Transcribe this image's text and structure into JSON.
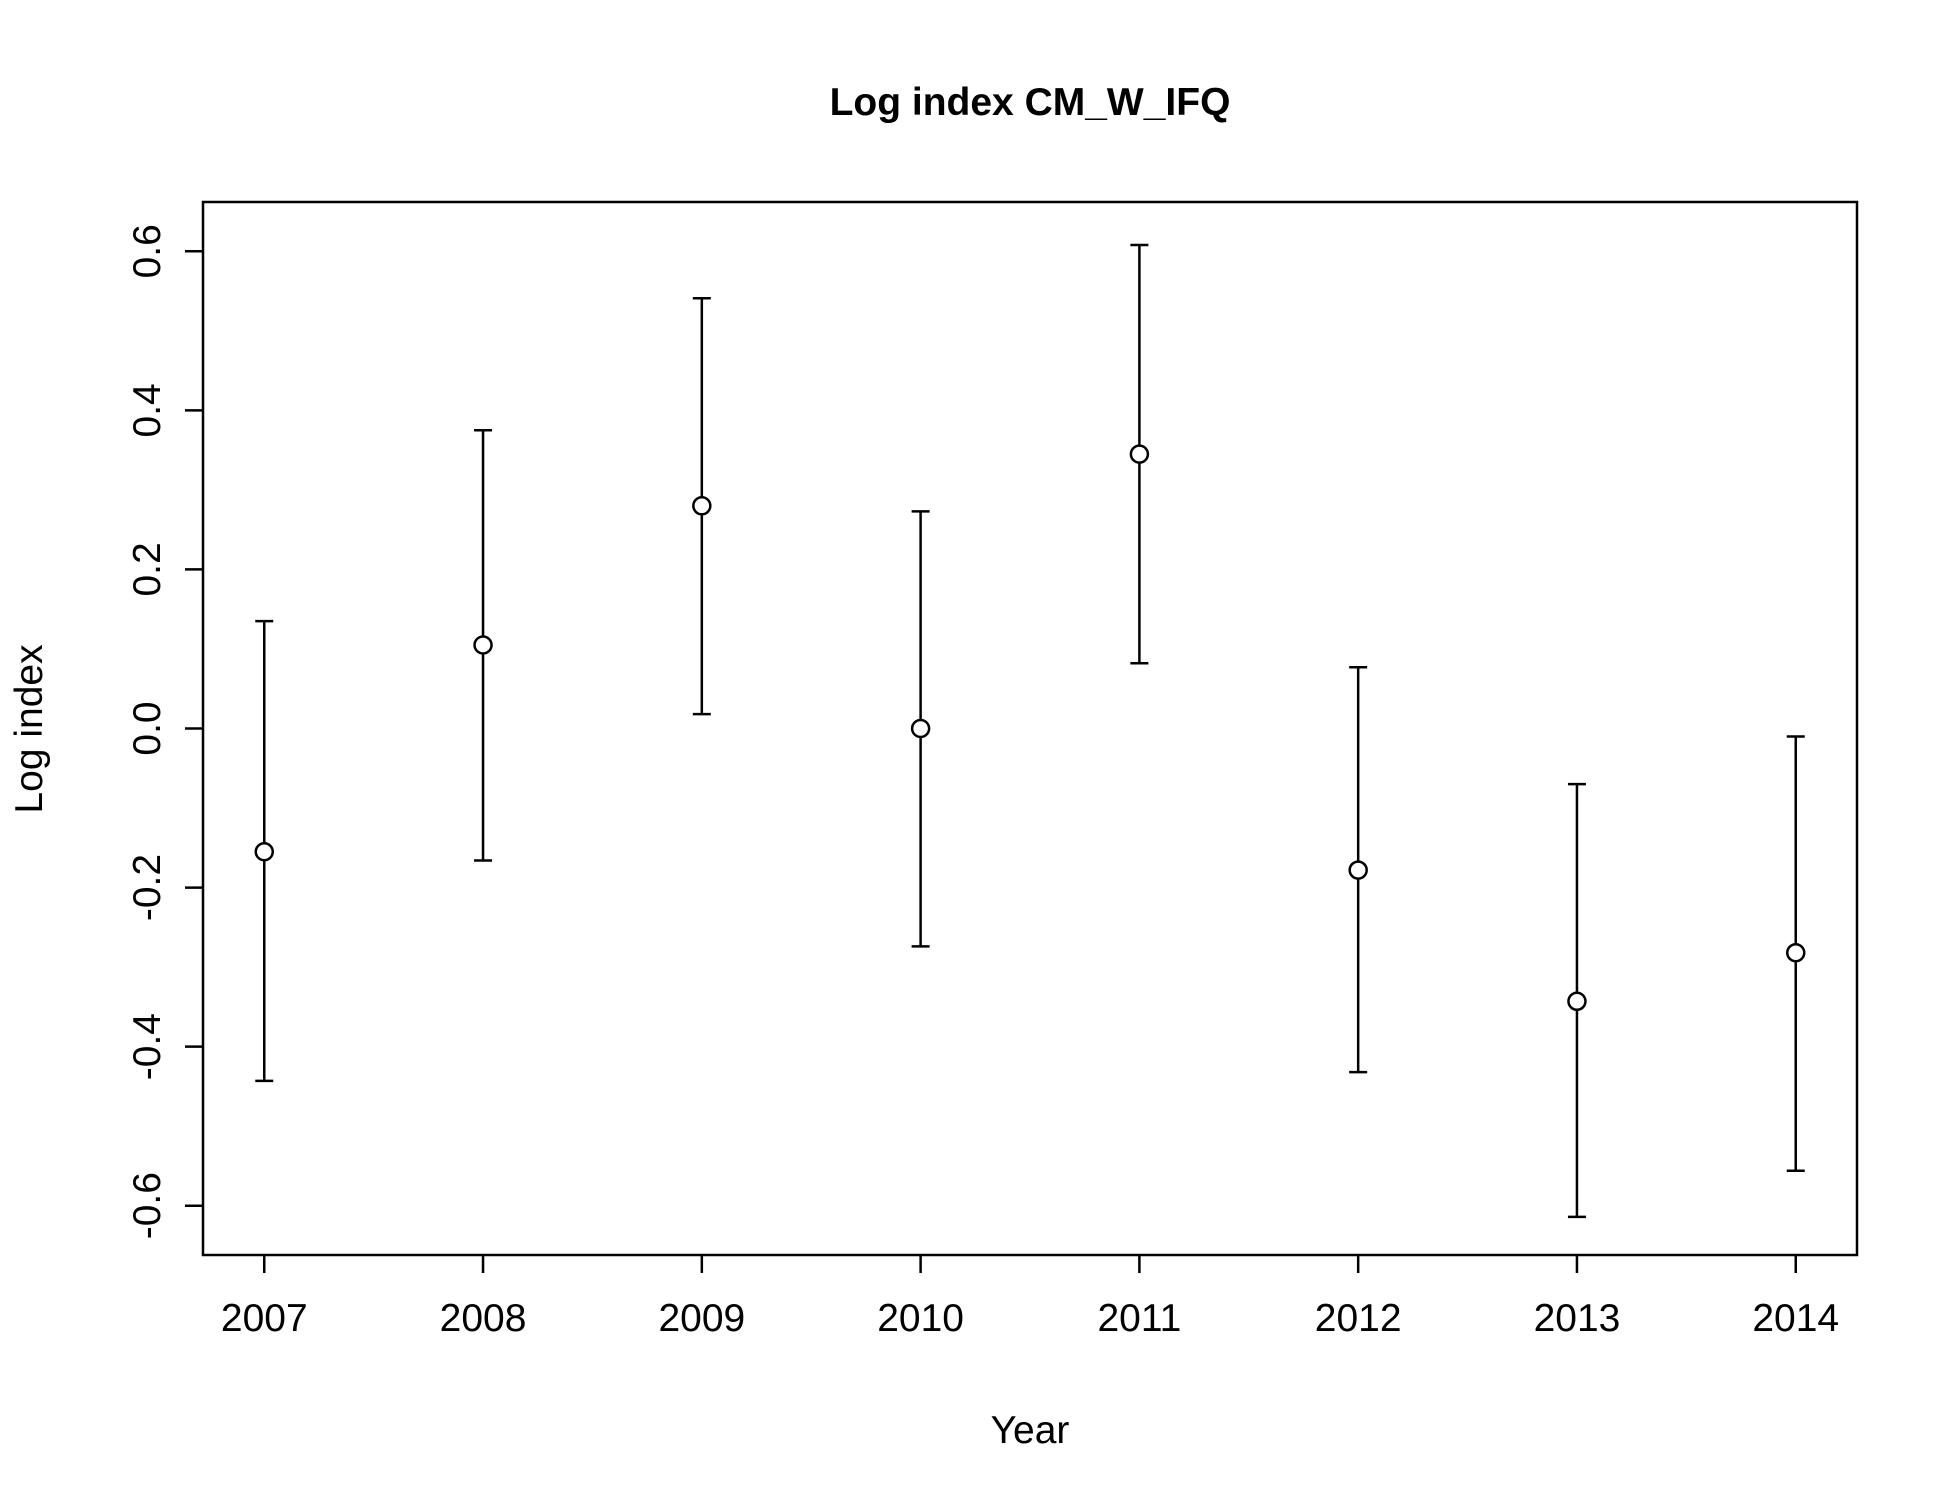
{
  "chart_data": {
    "type": "scatter",
    "title": "Log index CM_W_IFQ",
    "xlabel": "Year",
    "ylabel": "Log index",
    "x": [
      2007,
      2008,
      2009,
      2010,
      2011,
      2012,
      2013,
      2014
    ],
    "xtick_labels": [
      "2007",
      "2008",
      "2009",
      "2010",
      "2011",
      "2012",
      "2013",
      "2014"
    ],
    "yticks": [
      -0.6,
      -0.4,
      -0.2,
      0.0,
      0.2,
      0.4,
      0.6
    ],
    "ytick_labels": [
      "-0.6",
      "-0.4",
      "-0.2",
      "0.0",
      "0.2",
      "0.4",
      "0.6"
    ],
    "ylim": [
      -0.662,
      0.662
    ],
    "xlim": [
      2006.72,
      2014.28
    ],
    "grid": false,
    "series": [
      {
        "values": [
          -0.155,
          0.105,
          0.28,
          0.0,
          0.345,
          -0.178,
          -0.343,
          -0.282
        ],
        "lower": [
          -0.443,
          -0.166,
          0.018,
          -0.274,
          0.082,
          -0.432,
          -0.614,
          -0.556
        ],
        "upper": [
          0.135,
          0.375,
          0.541,
          0.273,
          0.608,
          0.077,
          -0.07,
          -0.01
        ],
        "marker": "open-circle",
        "color": "#000000"
      }
    ]
  }
}
